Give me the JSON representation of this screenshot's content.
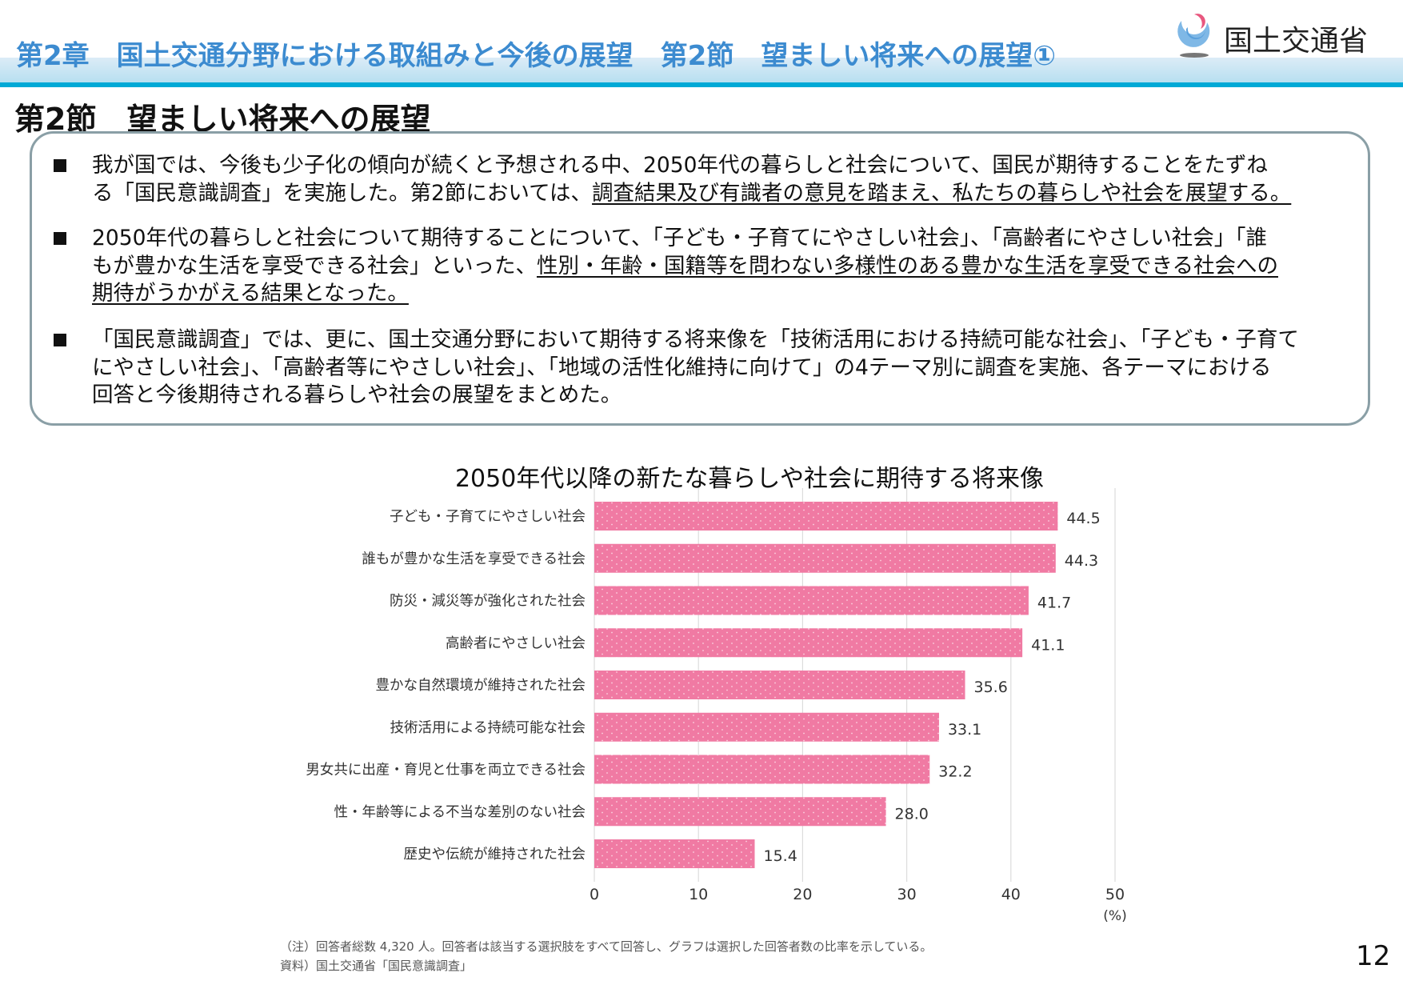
{
  "header": {
    "title": "第2章　国土交通分野における取組みと今後の展望　第2節　望ましい将来への展望①",
    "ministry": "国土交通省"
  },
  "section_title": "第2節　望ましい将来への展望",
  "summary": [
    {
      "lines": [
        [
          {
            "t": "我が国では、今後も少子化の傾向が続くと予想される中、2050年代の暮らしと社会について、国民が期待することをたずね",
            "u": false
          }
        ],
        [
          {
            "t": "る「国民意識調査」を実施した。第2節においては、",
            "u": false
          },
          {
            "t": "調査結果及び有識者の意見を踏まえ、私たちの暮らしや社会を展望する。",
            "u": true
          }
        ]
      ]
    },
    {
      "lines": [
        [
          {
            "t": "2050年代の暮らしと社会について期待することについて、「子ども・子育てにやさしい社会」、「高齢者にやさしい社会」「誰",
            "u": false
          }
        ],
        [
          {
            "t": "もが豊かな生活を享受できる社会」といった、",
            "u": false
          },
          {
            "t": "性別・年齢・国籍等を問わない多様性のある豊かな生活を享受できる社会への",
            "u": true
          }
        ],
        [
          {
            "t": "期待がうかがえる結果となった。",
            "u": true
          }
        ]
      ]
    },
    {
      "lines": [
        [
          {
            "t": "「国民意識調査」では、更に、国土交通分野において期待する将来像を「技術活用における持続可能な社会」、「子ども・子育て",
            "u": false
          }
        ],
        [
          {
            "t": "にやさしい社会」、「高齢者等にやさしい社会」、「地域の活性化維持に向けて」の4テーマ別に調査を実施、各テーマにおける",
            "u": false
          }
        ],
        [
          {
            "t": "回答と今後期待される暮らしや社会の展望をまとめた。",
            "u": false
          }
        ]
      ]
    }
  ],
  "chart_data": {
    "type": "bar",
    "orientation": "horizontal",
    "title": "2050年代以降の新たな暮らしや社会に期待する将来像",
    "categories": [
      "子ども・子育てにやさしい社会",
      "誰もが豊かな生活を享受できる社会",
      "防災・減災等が強化された社会",
      "高齢者にやさしい社会",
      "豊かな自然環境が維持された社会",
      "技術活用による持続可能な社会",
      "男女共に出産・育児と仕事を両立できる社会",
      "性・年齢等による不当な差別のない社会",
      "歴史や伝統が維持された社会"
    ],
    "values": [
      44.5,
      44.3,
      41.7,
      41.1,
      35.6,
      33.1,
      32.2,
      28.0,
      15.4
    ],
    "value_labels": [
      "44.5",
      "44.3",
      "41.7",
      "41.1",
      "35.6",
      "33.1",
      "32.2",
      "28.0",
      "15.4"
    ],
    "xlim": [
      0,
      50
    ],
    "xticks": [
      "0",
      "10",
      "20",
      "30",
      "40",
      "50"
    ],
    "xunit": "(%)",
    "grid": true,
    "bar_color": "#f07aa3"
  },
  "notes": {
    "note": "（注）回答者総数 4,320 人。回答者は該当する選択肢をすべて回答し、グラフは選択した回答者数の比率を示している。",
    "source": "資料）国土交通省「国民意識調査」"
  },
  "page_number": "12"
}
